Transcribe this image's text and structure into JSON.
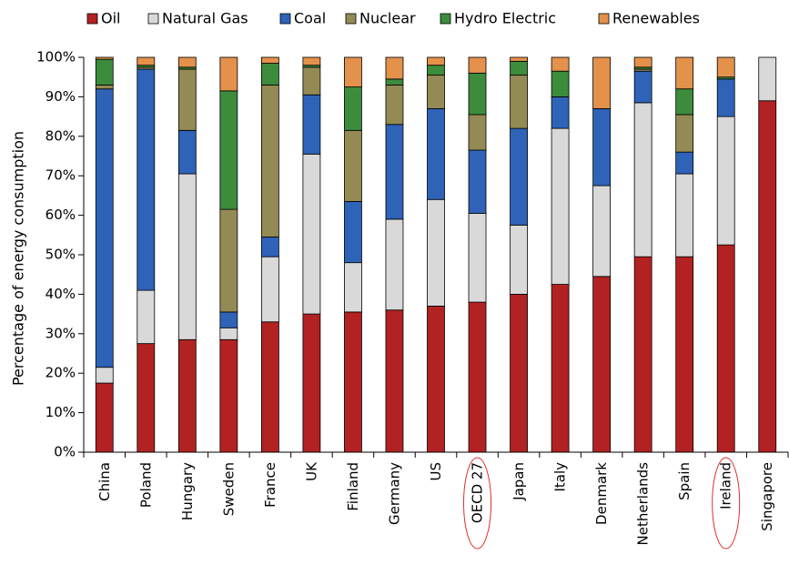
{
  "chart_data": {
    "type": "bar",
    "stacked": true,
    "ylabel": "Percentage of energy consumption",
    "xlabel": "",
    "ylim": [
      0,
      100
    ],
    "y_ticks": [
      "0%",
      "10%",
      "20%",
      "30%",
      "40%",
      "50%",
      "60%",
      "70%",
      "80%",
      "90%",
      "100%"
    ],
    "legend_position": "top",
    "grid": false,
    "categories": [
      "China",
      "Poland",
      "Hungary",
      "Sweden",
      "France",
      "UK",
      "Finland",
      "Germany",
      "US",
      "OECD 27",
      "Japan",
      "Italy",
      "Denmark",
      "Netherlands",
      "Spain",
      "Ireland",
      "Singapore"
    ],
    "highlighted_categories": [
      "OECD 27",
      "Ireland"
    ],
    "series": [
      {
        "name": "Oil",
        "color": "#B22222",
        "values": [
          17.5,
          27.5,
          28.5,
          28.5,
          33,
          35,
          35.5,
          36,
          37,
          38,
          40,
          42.5,
          44.5,
          49.5,
          49.5,
          52.5,
          89
        ]
      },
      {
        "name": "Natural Gas",
        "color": "#D9D9D9",
        "values": [
          4,
          13.5,
          42,
          3,
          16.5,
          40.5,
          12.5,
          23,
          27,
          22.5,
          17.5,
          39.5,
          23,
          39,
          21,
          32.5,
          11
        ]
      },
      {
        "name": "Coal",
        "color": "#2E63B8",
        "values": [
          70.5,
          56,
          11,
          4,
          5,
          15,
          15.5,
          24,
          23,
          16,
          24.5,
          8,
          19.5,
          8,
          5.5,
          9.5,
          0
        ]
      },
      {
        "name": "Nuclear",
        "color": "#948A54",
        "values": [
          1,
          0.5,
          15.5,
          26,
          38.5,
          7,
          18,
          10,
          8.5,
          9,
          13.5,
          0,
          0,
          0.5,
          9.5,
          0,
          0
        ]
      },
      {
        "name": "Hydro Electric",
        "color": "#3C8C3C",
        "values": [
          6.5,
          0.5,
          0.5,
          30,
          5.5,
          0.5,
          11,
          1.5,
          2.5,
          10.5,
          3.5,
          6.5,
          0,
          0.5,
          6.5,
          0.5,
          0
        ]
      },
      {
        "name": "Renewables",
        "color": "#E4914B",
        "values": [
          0.5,
          2,
          2.5,
          8.5,
          1.5,
          2,
          7.5,
          5.5,
          2,
          4,
          1,
          3.5,
          13,
          2.5,
          8,
          5,
          0
        ]
      }
    ]
  }
}
